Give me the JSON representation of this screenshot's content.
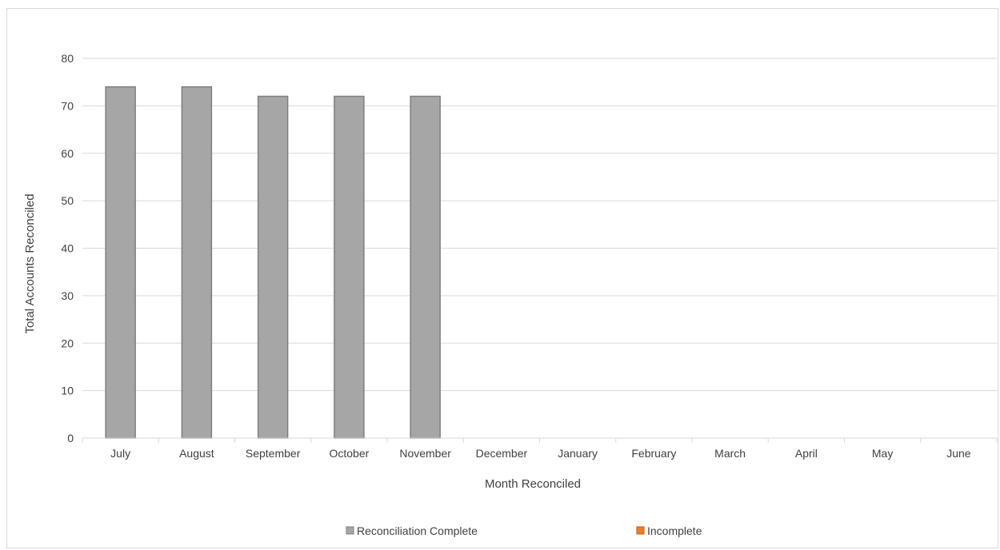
{
  "chart_data": {
    "type": "bar",
    "categories": [
      "July",
      "August",
      "September",
      "October",
      "November",
      "December",
      "January",
      "February",
      "March",
      "April",
      "May",
      "June"
    ],
    "series": [
      {
        "name": "Reconciliation Complete",
        "color": "#a6a6a6",
        "values": [
          74,
          74,
          72,
          72,
          72,
          0,
          0,
          0,
          0,
          0,
          0,
          0
        ]
      },
      {
        "name": "Incomplete",
        "color": "#ed7d31",
        "values": [
          0,
          0,
          0,
          0,
          0,
          0,
          0,
          0,
          0,
          0,
          0,
          0
        ]
      }
    ],
    "title": "",
    "xlabel": "Month Reconciled",
    "ylabel": "Total Accounts Reconciled",
    "ylim": [
      0,
      80
    ],
    "yticks": [
      0,
      10,
      20,
      30,
      40,
      50,
      60,
      70,
      80
    ],
    "grid": true,
    "legend_position": "bottom"
  }
}
